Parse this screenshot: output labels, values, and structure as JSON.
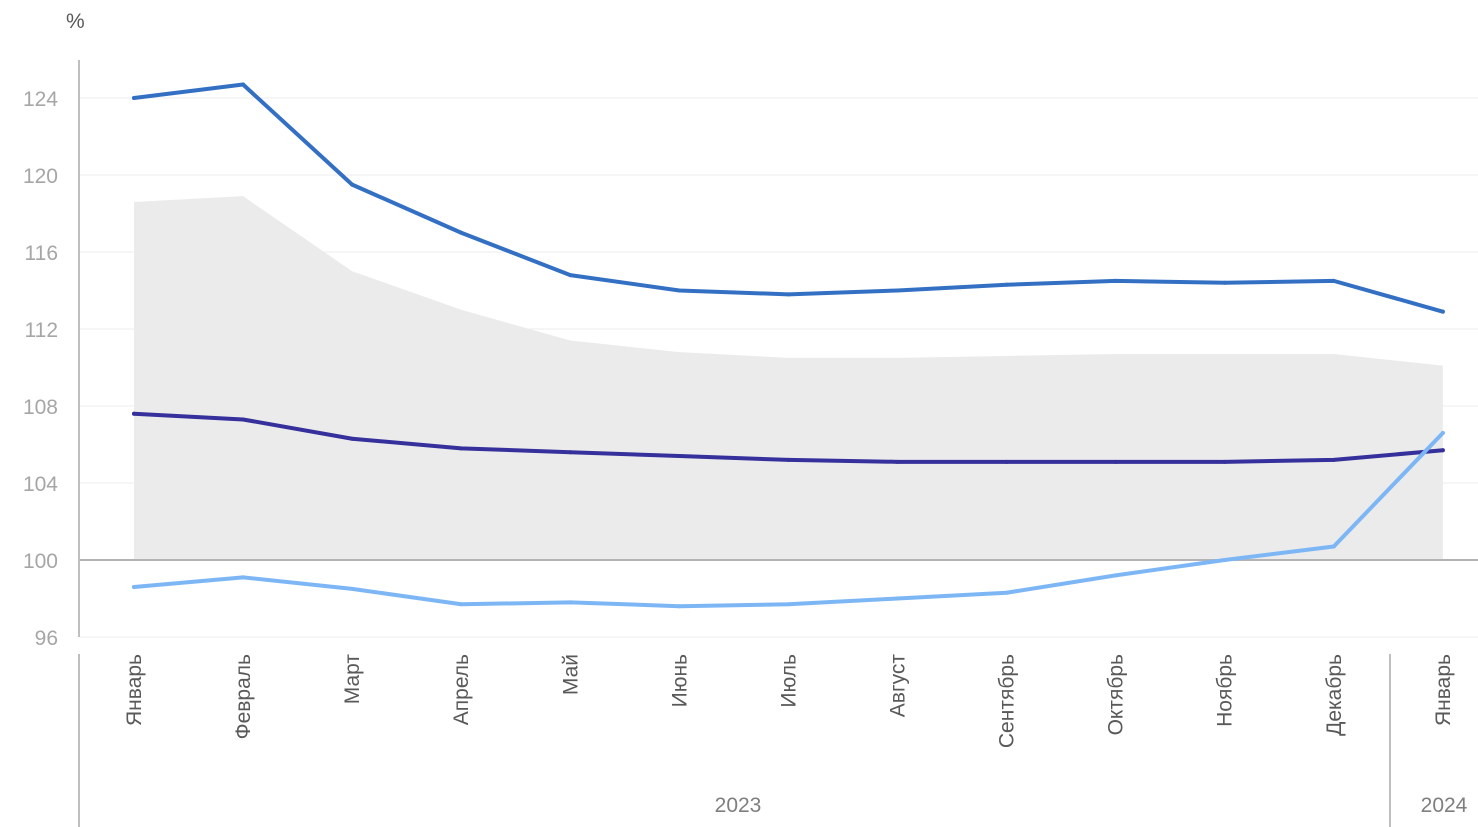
{
  "chart_data": {
    "type": "line",
    "unit_label": "%",
    "categories": [
      "Январь",
      "Февраль",
      "Март",
      "Апрель",
      "Май",
      "Июнь",
      "Июль",
      "Август",
      "Сентябрь",
      "Октябрь",
      "Ноябрь",
      "Декабрь",
      "Январь"
    ],
    "year_groups": [
      {
        "label": "2023",
        "count": 12
      },
      {
        "label": "2024",
        "count": 1
      }
    ],
    "ylim": [
      96,
      126
    ],
    "yticks": [
      96,
      100,
      104,
      108,
      112,
      116,
      120,
      124
    ],
    "baseline": 100,
    "grid": true,
    "band": {
      "lower": 100,
      "upper": [
        118.6,
        118.9,
        115.0,
        113.0,
        111.4,
        110.8,
        110.5,
        110.5,
        110.6,
        110.7,
        110.7,
        110.7,
        110.1
      ],
      "color": "#ebebeb"
    },
    "series": [
      {
        "values": [
          124.0,
          124.7,
          119.5,
          117.0,
          114.8,
          114.0,
          113.8,
          114.0,
          114.3,
          114.5,
          114.4,
          114.5,
          112.9
        ],
        "color": "#3370c4"
      },
      {
        "values": [
          107.6,
          107.3,
          106.3,
          105.8,
          105.6,
          105.4,
          105.2,
          105.1,
          105.1,
          105.1,
          105.1,
          105.2,
          105.7
        ],
        "color": "#35309b"
      },
      {
        "values": [
          98.6,
          99.1,
          98.5,
          97.7,
          97.8,
          97.6,
          97.7,
          98.0,
          98.3,
          99.2,
          100.0,
          100.7,
          106.6
        ],
        "color": "#7db6f5"
      }
    ]
  }
}
